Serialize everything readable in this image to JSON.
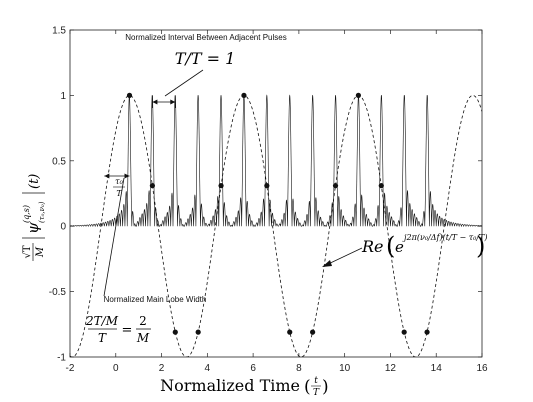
{
  "chart_data": {
    "type": "line",
    "xlabel": "Normalized Time",
    "xlabel_frac": {
      "num": "t",
      "den": "T"
    },
    "ylabel": {
      "scale_num": "√T",
      "scale_den": "M",
      "psi": "ψ",
      "sup": "(q,s)",
      "sub": "(τ₀,ν₀)",
      "arg": "(t)"
    },
    "xlim": [
      -2,
      16
    ],
    "ylim": [
      -1,
      1.5
    ],
    "xticks": [
      -2,
      0,
      2,
      4,
      6,
      8,
      10,
      12,
      14,
      16
    ],
    "yticks": [
      -1,
      -0.5,
      0,
      0.5,
      1,
      1.5
    ],
    "ytick_labels": [
      "-1",
      "-0.5",
      "0",
      "0.5",
      "1",
      "1.5"
    ],
    "grid": false,
    "series": [
      {
        "style": "solid",
        "pulse_centers": [
          0.6,
          1.6,
          2.6,
          3.6,
          4.6,
          5.6,
          6.6,
          7.6,
          8.6,
          9.6,
          10.6,
          11.6,
          12.6,
          13.6
        ],
        "peak_value": 1,
        "main_lobe_width": 0.1
      },
      {
        "style": "dashed",
        "kind": "cosine",
        "amplitude": 1,
        "period": 5,
        "peak_at": 0.6
      }
    ],
    "markers": [
      {
        "x": 0.6,
        "y": 1
      },
      {
        "x": 5.6,
        "y": 1
      },
      {
        "x": 10.6,
        "y": 1
      },
      {
        "x": 1.6,
        "y": 0.31
      },
      {
        "x": 4.6,
        "y": 0.31
      },
      {
        "x": 6.6,
        "y": 0.31
      },
      {
        "x": 9.6,
        "y": 0.31
      },
      {
        "x": 11.6,
        "y": 0.31
      },
      {
        "x": 2.6,
        "y": -0.81
      },
      {
        "x": 3.6,
        "y": -0.81
      },
      {
        "x": 7.6,
        "y": -0.81
      },
      {
        "x": 8.6,
        "y": -0.81
      },
      {
        "x": 12.6,
        "y": -0.81
      },
      {
        "x": 13.6,
        "y": -0.81
      }
    ],
    "annotations": {
      "interval_label": "Normalized Interval Between Adjacent Pulses",
      "interval_formula": "T/T = 1",
      "lobe_label": "Normalized Main Lobe Width",
      "lobe_formula_lhs_num": "2T/M",
      "lobe_formula_lhs_den": "T",
      "lobe_formula_eq": "=",
      "lobe_formula_rhs_num": "2",
      "lobe_formula_rhs_den": "M",
      "tau_num": "τ₀",
      "tau_den": "T",
      "re_label": "Re",
      "re_base": "e",
      "re_exponent": "j2π(ν₀/Δf)(t/T − τ₀/T)"
    }
  }
}
